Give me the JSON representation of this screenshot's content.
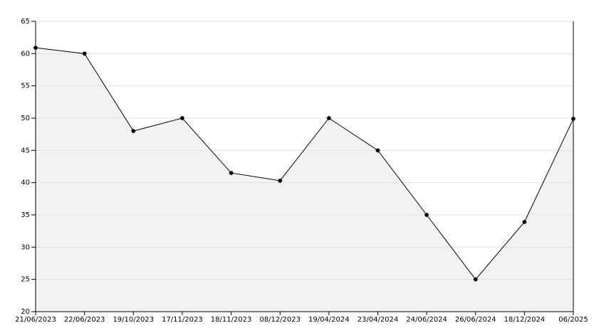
{
  "chart_data": {
    "type": "line",
    "categories": [
      "21/06/2023",
      "22/06/2023",
      "19/10/2023",
      "17/11/2023",
      "18/11/2023",
      "08/12/2023",
      "19/04/2024",
      "23/04/2024",
      "24/06/2024",
      "26/06/2024",
      "18/12/2024",
      "06/2025"
    ],
    "values": [
      60.9,
      60,
      48,
      50,
      41.5,
      40.3,
      50,
      45,
      35,
      25,
      33.9,
      49.9
    ],
    "color": "#000000",
    "fill": "#f2f2f2",
    "ylim": [
      20,
      65
    ],
    "yticks": [
      20,
      25,
      30,
      35,
      40,
      45,
      50,
      55,
      60,
      65
    ],
    "grid": true
  }
}
